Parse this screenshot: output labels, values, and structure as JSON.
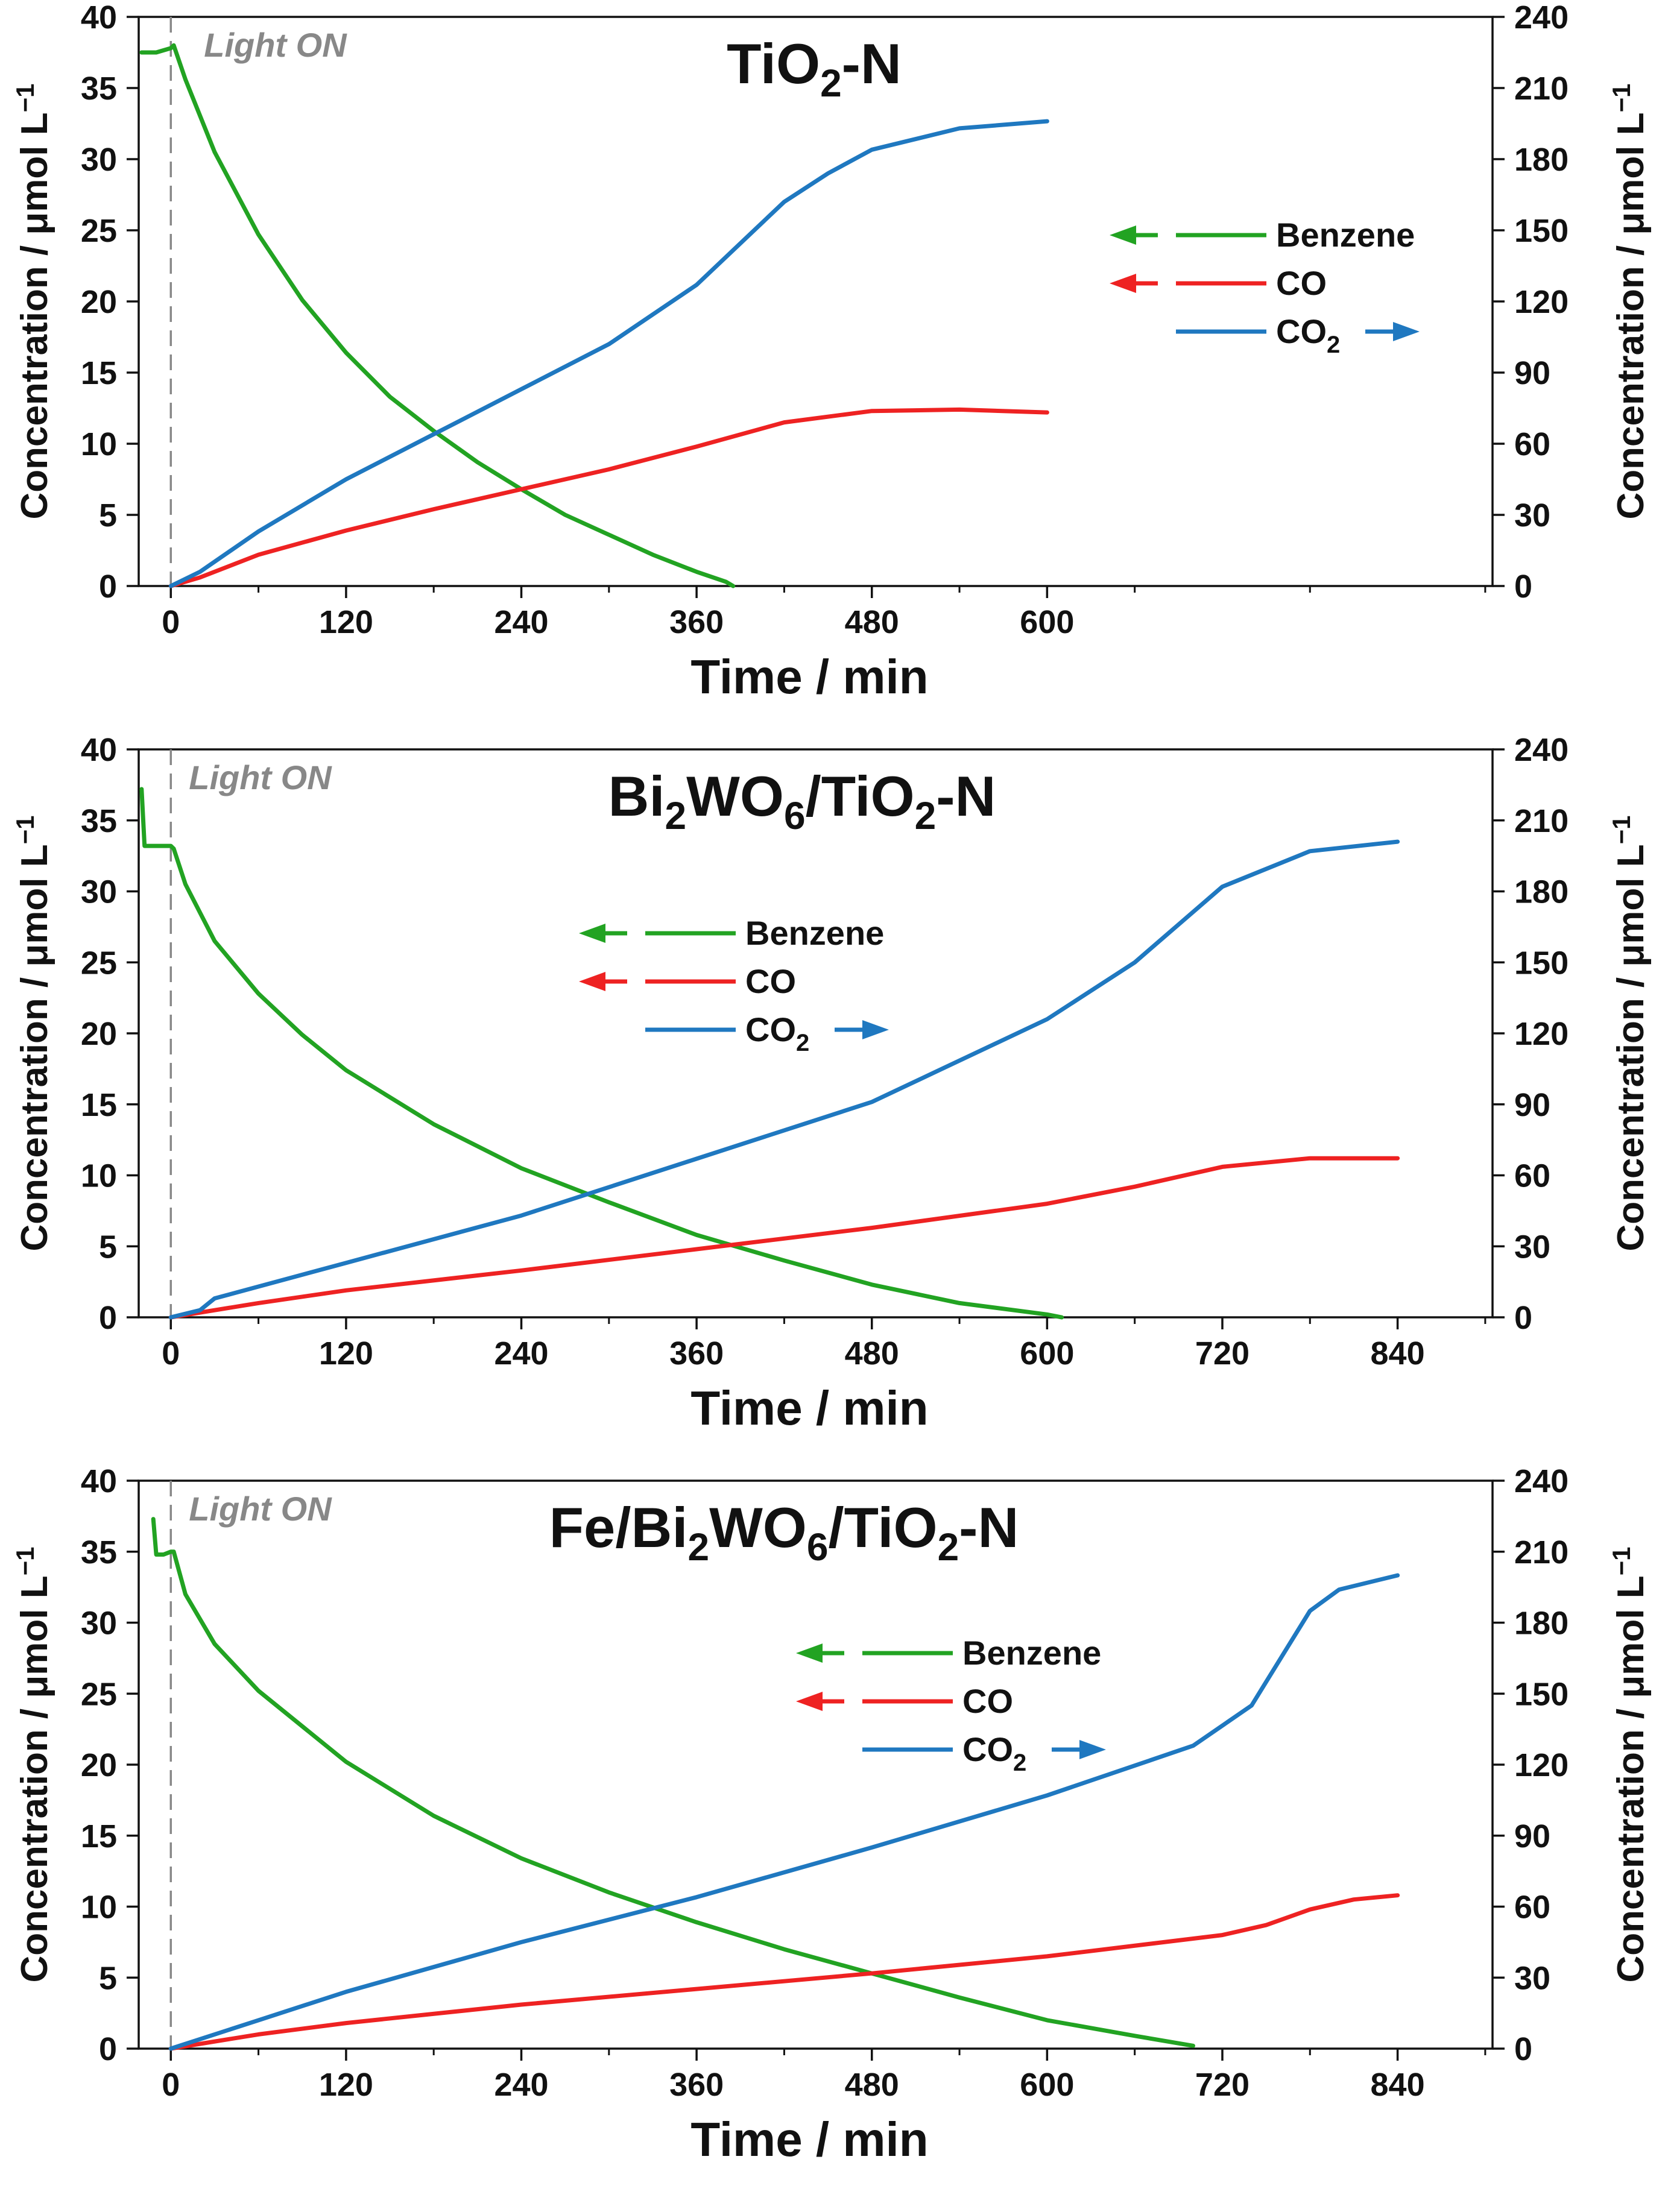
{
  "chart_data": [
    {
      "type": "line",
      "title": "TiO2-N",
      "title_parts": [
        {
          "t": "TiO",
          "sub": false
        },
        {
          "t": "2",
          "sub": true
        },
        {
          "t": "-N",
          "sub": false
        }
      ],
      "xlabel": "Time / min",
      "ylabel_left": "Concentration / μmol L",
      "ylabel_right": "Concentration / μmol L",
      "ylabel_exp": "−1",
      "light_label": "Light ON",
      "xlim": [
        -22,
        905
      ],
      "x_ticks": [
        0,
        120,
        240,
        360,
        480,
        600
      ],
      "ylim_left": [
        0,
        40
      ],
      "y_ticks_left": [
        0,
        5,
        10,
        15,
        20,
        25,
        30,
        35,
        40
      ],
      "ylim_right": [
        0,
        240
      ],
      "y_ticks_right": [
        0,
        30,
        60,
        90,
        120,
        150,
        180,
        210,
        240
      ],
      "legend": [
        {
          "label": "Benzene",
          "sub": "",
          "axis": "left"
        },
        {
          "label": "CO",
          "sub": "",
          "axis": "left"
        },
        {
          "label": "CO",
          "sub": "2",
          "axis": "right"
        }
      ],
      "series": [
        {
          "name": "Benzene",
          "axis": "left",
          "color": "#22a322",
          "x": [
            -20,
            -10,
            0,
            2,
            10,
            30,
            60,
            90,
            120,
            150,
            180,
            210,
            240,
            270,
            300,
            330,
            360,
            380,
            385
          ],
          "y": [
            37.5,
            37.5,
            37.8,
            38.0,
            35.6,
            30.5,
            24.7,
            20.1,
            16.4,
            13.3,
            10.9,
            8.7,
            6.8,
            5.0,
            3.6,
            2.2,
            1.0,
            0.3,
            0.0
          ]
        },
        {
          "name": "CO",
          "axis": "left",
          "color": "#ee2222",
          "x": [
            0,
            20,
            60,
            120,
            180,
            240,
            300,
            360,
            420,
            480,
            540,
            600
          ],
          "y": [
            0,
            0.6,
            2.2,
            3.9,
            5.4,
            6.8,
            8.2,
            9.8,
            11.5,
            12.3,
            12.4,
            12.2
          ]
        },
        {
          "name": "CO2",
          "axis": "right",
          "color": "#1f78c0",
          "x": [
            0,
            20,
            60,
            120,
            180,
            240,
            300,
            360,
            420,
            450,
            480,
            540,
            600
          ],
          "y": [
            0,
            6,
            23,
            45,
            64,
            83,
            102,
            127,
            162,
            174,
            184,
            193,
            196
          ]
        }
      ]
    },
    {
      "type": "line",
      "title": "Bi2WO6/TiO2-N",
      "title_parts": [
        {
          "t": "Bi",
          "sub": false
        },
        {
          "t": "2",
          "sub": true
        },
        {
          "t": "WO",
          "sub": false
        },
        {
          "t": "6",
          "sub": true
        },
        {
          "t": "/TiO",
          "sub": false
        },
        {
          "t": "2",
          "sub": true
        },
        {
          "t": "-N",
          "sub": false
        }
      ],
      "xlabel": "Time / min",
      "ylabel_left": "Concentration / μmol L",
      "ylabel_right": "Concentration / μmol L",
      "ylabel_exp": "−1",
      "light_label": "Light ON",
      "xlim": [
        -22,
        905
      ],
      "x_ticks": [
        0,
        120,
        240,
        360,
        480,
        600,
        720,
        840
      ],
      "ylim_left": [
        0,
        40
      ],
      "y_ticks_left": [
        0,
        5,
        10,
        15,
        20,
        25,
        30,
        35,
        40
      ],
      "ylim_right": [
        0,
        240
      ],
      "y_ticks_right": [
        0,
        30,
        60,
        90,
        120,
        150,
        180,
        210,
        240
      ],
      "legend": [
        {
          "label": "Benzene",
          "sub": "",
          "axis": "left"
        },
        {
          "label": "CO",
          "sub": "",
          "axis": "left"
        },
        {
          "label": "CO",
          "sub": "2",
          "axis": "right"
        }
      ],
      "series": [
        {
          "name": "Benzene",
          "axis": "left",
          "color": "#22a322",
          "x": [
            -20,
            -18,
            -10,
            0,
            2,
            10,
            30,
            60,
            90,
            120,
            180,
            240,
            300,
            360,
            420,
            480,
            540,
            600,
            610
          ],
          "y": [
            37.2,
            33.2,
            33.2,
            33.2,
            33.0,
            30.5,
            26.5,
            22.8,
            19.9,
            17.4,
            13.6,
            10.5,
            8.1,
            5.8,
            4.0,
            2.3,
            1.0,
            0.2,
            0.0
          ]
        },
        {
          "name": "CO",
          "axis": "left",
          "color": "#ee2222",
          "x": [
            0,
            60,
            120,
            240,
            360,
            480,
            600,
            660,
            720,
            780,
            840
          ],
          "y": [
            0,
            1.0,
            1.9,
            3.3,
            4.8,
            6.3,
            8.0,
            9.2,
            10.6,
            11.2,
            11.2
          ]
        },
        {
          "name": "CO2",
          "axis": "right",
          "color": "#1f78c0",
          "x": [
            0,
            20,
            30,
            60,
            120,
            240,
            360,
            480,
            600,
            660,
            720,
            780,
            840
          ],
          "y": [
            0,
            3,
            8,
            13,
            23,
            43,
            67,
            91,
            126,
            150,
            182,
            197,
            201
          ]
        }
      ]
    },
    {
      "type": "line",
      "title": "Fe/Bi2WO6/TiO2-N",
      "title_parts": [
        {
          "t": "Fe/Bi",
          "sub": false
        },
        {
          "t": "2",
          "sub": true
        },
        {
          "t": "WO",
          "sub": false
        },
        {
          "t": "6",
          "sub": true
        },
        {
          "t": "/TiO",
          "sub": false
        },
        {
          "t": "2",
          "sub": true
        },
        {
          "t": "-N",
          "sub": false
        }
      ],
      "xlabel": "Time / min",
      "ylabel_left": "Concentration / μmol L",
      "ylabel_right": "Concentration / μmol L",
      "ylabel_exp": "−1",
      "light_label": "Light ON",
      "xlim": [
        -22,
        905
      ],
      "x_ticks": [
        0,
        120,
        240,
        360,
        480,
        600,
        720,
        840
      ],
      "ylim_left": [
        0,
        40
      ],
      "y_ticks_left": [
        0,
        5,
        10,
        15,
        20,
        25,
        30,
        35,
        40
      ],
      "ylim_right": [
        0,
        240
      ],
      "y_ticks_right": [
        0,
        30,
        60,
        90,
        120,
        150,
        180,
        210,
        240
      ],
      "legend": [
        {
          "label": "Benzene",
          "sub": "",
          "axis": "left"
        },
        {
          "label": "CO",
          "sub": "",
          "axis": "left"
        },
        {
          "label": "CO",
          "sub": "2",
          "axis": "right"
        }
      ],
      "series": [
        {
          "name": "Benzene",
          "axis": "left",
          "color": "#22a322",
          "x": [
            -12,
            -10,
            -5,
            0,
            2,
            10,
            30,
            60,
            120,
            180,
            240,
            300,
            360,
            420,
            480,
            540,
            600,
            660,
            700
          ],
          "y": [
            37.3,
            34.8,
            34.8,
            35.0,
            35.0,
            32.0,
            28.5,
            25.2,
            20.2,
            16.4,
            13.4,
            11.0,
            8.9,
            7.0,
            5.3,
            3.6,
            2.0,
            0.9,
            0.2
          ]
        },
        {
          "name": "CO",
          "axis": "left",
          "color": "#ee2222",
          "x": [
            0,
            60,
            120,
            240,
            360,
            480,
            600,
            720,
            750,
            780,
            810,
            840
          ],
          "y": [
            0,
            1.0,
            1.8,
            3.1,
            4.2,
            5.3,
            6.5,
            8.0,
            8.7,
            9.8,
            10.5,
            10.8
          ]
        },
        {
          "name": "CO2",
          "axis": "right",
          "color": "#1f78c0",
          "x": [
            0,
            60,
            120,
            240,
            360,
            480,
            600,
            700,
            740,
            760,
            780,
            800,
            840
          ],
          "y": [
            0,
            12,
            24,
            45,
            64,
            85,
            107,
            128,
            145,
            165,
            185,
            194,
            200
          ]
        }
      ]
    }
  ]
}
